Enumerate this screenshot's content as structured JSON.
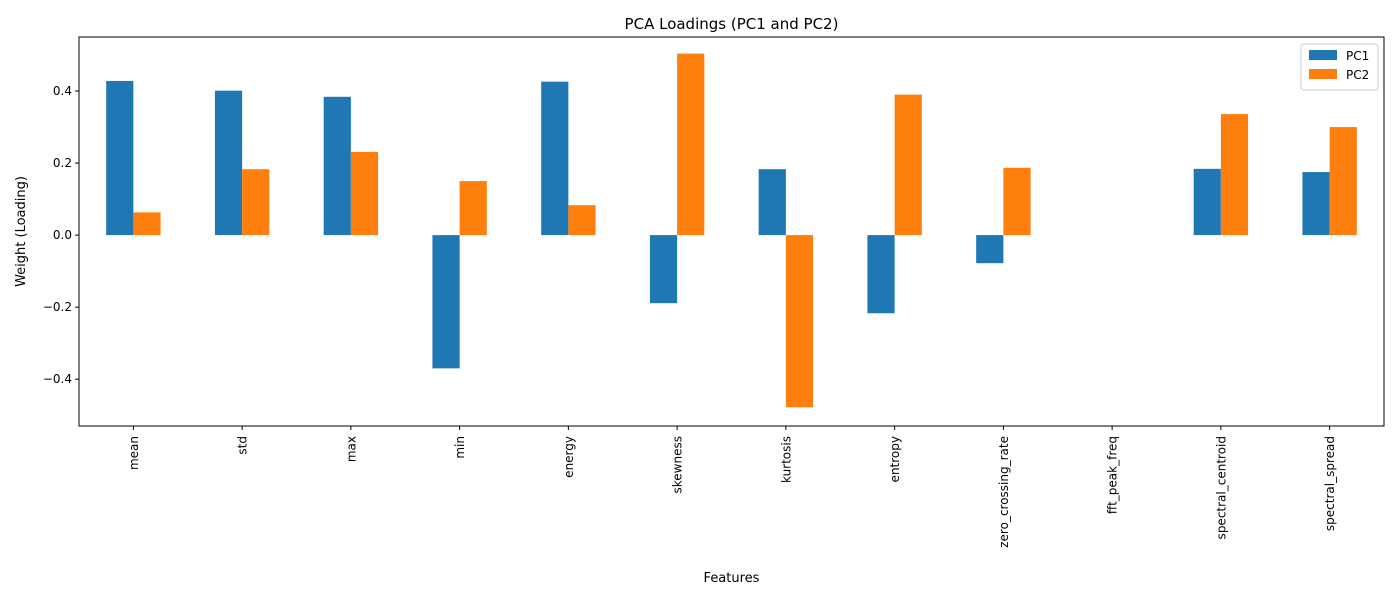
{
  "chart_data": {
    "type": "bar",
    "title": "PCA Loadings (PC1 and PC2)",
    "xlabel": "Features",
    "ylabel": "Weight (Loading)",
    "categories": [
      "mean",
      "std",
      "max",
      "min",
      "energy",
      "skewness",
      "kurtosis",
      "entropy",
      "zero_crossing_rate",
      "fft_peak_freq",
      "spectral_centroid",
      "spectral_spread"
    ],
    "series": [
      {
        "name": "PC1",
        "color": "#1f77b4",
        "values": [
          0.428,
          0.401,
          0.384,
          -0.37,
          0.426,
          -0.189,
          0.183,
          -0.217,
          -0.078,
          0.0,
          0.184,
          0.175
        ]
      },
      {
        "name": "PC2",
        "color": "#ff7f0e",
        "values": [
          0.063,
          0.183,
          0.231,
          0.15,
          0.083,
          0.504,
          -0.478,
          0.39,
          0.187,
          0.0,
          0.336,
          0.3
        ]
      }
    ],
    "ylim": [
      -0.53,
      0.55
    ],
    "yticks": [
      -0.4,
      -0.2,
      0.0,
      0.2,
      0.4
    ],
    "ytick_labels": [
      "−0.4",
      "−0.2",
      "0.0",
      "0.2",
      "0.4"
    ],
    "grid": false,
    "legend_position": "top-right"
  }
}
